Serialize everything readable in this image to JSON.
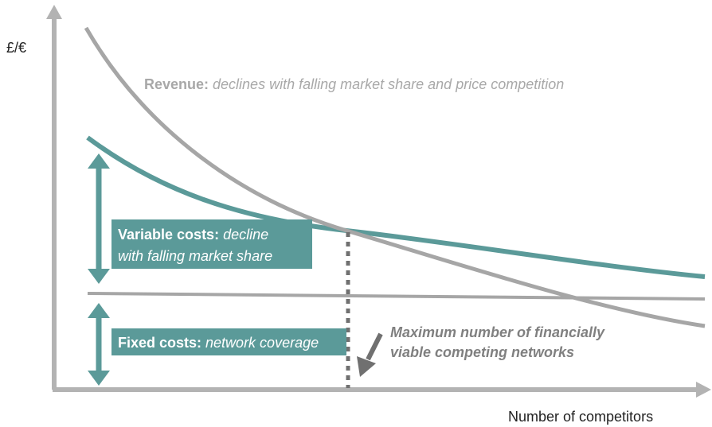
{
  "y_axis_label": "£/€",
  "x_axis_label": "Number of competitors",
  "revenue": {
    "label": "Revenue:",
    "description": "declines with falling market share and price competition"
  },
  "variable_costs": {
    "label": "Variable costs:",
    "description": [
      "decline",
      "with falling market share"
    ]
  },
  "fixed_costs": {
    "label": "Fixed costs:",
    "description": "network coverage"
  },
  "annotation": [
    "Maximum number of financially",
    "viable competing networks"
  ]
}
